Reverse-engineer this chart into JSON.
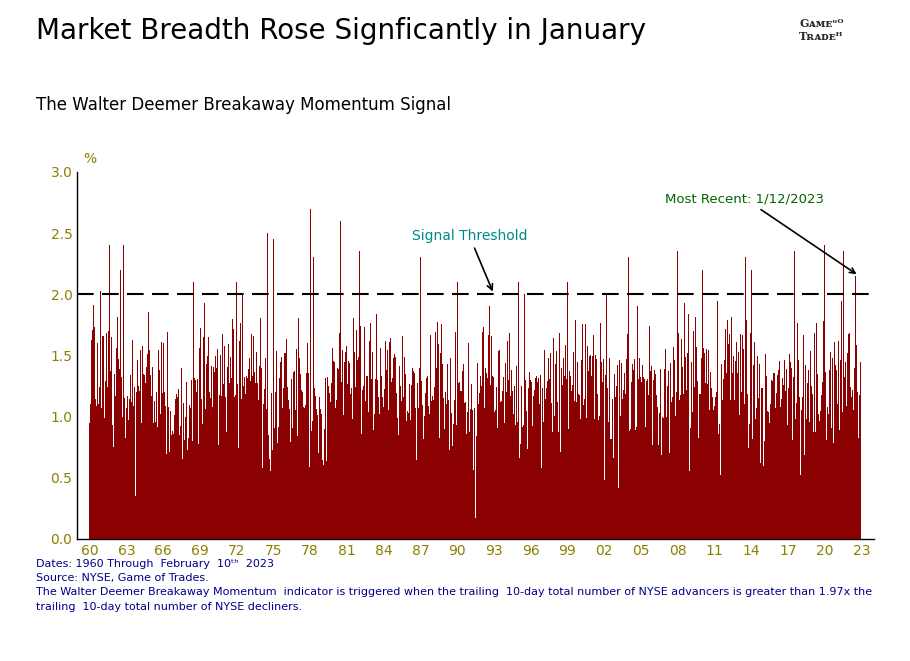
{
  "title": "Market Breadth Rose Signficantly in January",
  "subtitle": "The Walter Deemer Breakaway Momentum Signal",
  "ylabel": "%",
  "ylim": [
    0.0,
    3.0
  ],
  "yticks": [
    0.0,
    0.5,
    1.0,
    1.5,
    2.0,
    2.5,
    3.0
  ],
  "threshold": 2.0,
  "threshold_label": "Signal Threshold",
  "most_recent_label": "Most Recent: 1/12/2023",
  "bar_color": "#8B0000",
  "threshold_color": "#000000",
  "title_color": "#000000",
  "subtitle_color": "#000000",
  "ytick_color": "#8B8000",
  "xtick_color": "#8B8000",
  "threshold_text_color": "#008B8B",
  "most_recent_text_color": "#006400",
  "footer_color": "#00008B",
  "background_color": "#ffffff",
  "x_start_year": 1960,
  "x_end_year": 2023
}
